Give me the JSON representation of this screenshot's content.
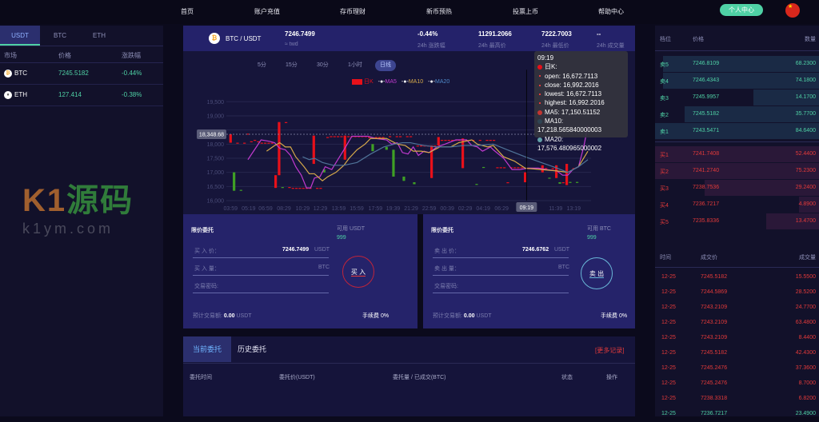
{
  "nav": {
    "items": [
      "首页",
      "账户充值",
      "存币理财",
      "新币预热",
      "投票上币",
      "帮助中心"
    ],
    "profile": "个人中心",
    "flag_icon": "china-flag-icon"
  },
  "left": {
    "tabs": [
      "USDT",
      "BTC",
      "ETH"
    ],
    "headers": [
      "市场",
      "价格",
      "涨跌幅"
    ],
    "rows": [
      {
        "coin": "BTC",
        "price": "7245.5182",
        "change": "-0.44%",
        "icon": "bitcoin-icon"
      },
      {
        "coin": "ETH",
        "price": "127.414",
        "change": "-0.38%",
        "icon": "ethereum-icon"
      }
    ]
  },
  "watermark": {
    "logo": "K1源码",
    "url": "k1ym.com"
  },
  "ticker": {
    "pair": "BTC / USDT",
    "price": "7246.7499",
    "price_sub": "≈ twd",
    "stats": [
      {
        "value": "-0.44%",
        "label": "24h 涨跌幅"
      },
      {
        "value": "11291.2066",
        "label": "24h 最高价"
      },
      {
        "value": "7222.7003",
        "label": "24h 最低价"
      },
      {
        "value": "--",
        "label": "24h 成交量"
      }
    ]
  },
  "periods": [
    "5分",
    "15分",
    "30分",
    "1小时",
    "日线"
  ],
  "active_period": "日线",
  "tooltip": {
    "time": "09:19",
    "title": "日K:",
    "lines": [
      "open: 16,672.7113",
      "close: 16,992.2016",
      "lowest: 16,672.7113",
      "highest: 16,992.2016"
    ],
    "ma": [
      "MA5: 17,150.51152",
      "MA10: 17,218.565840000003",
      "MA20: 17,576.480965000002"
    ]
  },
  "chart_data": {
    "type": "candlestick",
    "legend": [
      "日K",
      "MA5",
      "MA10",
      "MA20"
    ],
    "colors": {
      "up": "#e8101a",
      "down": "#3fa025",
      "ma5": "#c13ad0",
      "ma10": "#d6a94a",
      "ma20": "#4f7398"
    },
    "ylim": [
      16000,
      19500
    ],
    "yticks": [
      "19,500",
      "19,000",
      "18,500",
      "18,000",
      "17,500",
      "17,000",
      "16,500",
      "16,000"
    ],
    "ytick_values": [
      19500,
      19000,
      18500,
      18000,
      17500,
      17000,
      16500,
      16000
    ],
    "xtick_labels": [
      [
        "03:59",
        0
      ],
      [
        "05:19",
        5.2
      ],
      [
        "06:59",
        10.1
      ],
      [
        "08:29",
        15.4
      ],
      [
        "10:29",
        20.8
      ],
      [
        "12:29",
        25.9
      ],
      [
        "13:59",
        31.2
      ],
      [
        "15:59",
        36.4
      ],
      [
        "17:59",
        41.8
      ],
      [
        "19:39",
        46.9
      ],
      [
        "21:29",
        52.1
      ],
      [
        "22:59",
        57.3
      ],
      [
        "00:39",
        62.5
      ],
      [
        "02:29",
        67.7
      ],
      [
        "04:19",
        72.9
      ],
      [
        "06:29",
        78.2
      ],
      [
        "11:39",
        93.8
      ],
      [
        "13:19",
        99
      ]
    ],
    "pointer_x_label": "09:19",
    "pointer_index": 85.4,
    "pointer_y_label": "18,348.68",
    "pointer_y": 18348.68,
    "candles": [
      [
        18050,
        18350,
        18050,
        18350
      ],
      [
        17000,
        16350,
        16350,
        17000
      ],
      [
        18050,
        18050,
        18050,
        18050
      ],
      [
        16380,
        16370,
        16370,
        16380
      ],
      [
        18050,
        18050,
        18050,
        18050
      ],
      [
        18370,
        18370,
        18370,
        18370
      ],
      [
        18100,
        18100,
        18100,
        18100
      ],
      [
        18150,
        18150,
        18150,
        18150
      ],
      [
        18100,
        18100,
        18100,
        18100
      ],
      [
        18050,
        18050,
        18050,
        18050
      ],
      [
        18050,
        18050,
        18050,
        18050
      ],
      [
        18050,
        18050,
        18050,
        18050
      ],
      [
        18050,
        18050,
        18050,
        18050
      ],
      [
        16450,
        16900,
        16450,
        16900
      ],
      [
        16900,
        18780,
        16900,
        18780
      ],
      [
        16480,
        16470,
        16470,
        16480
      ],
      [
        18780,
        18780,
        18780,
        18780
      ],
      [
        16480,
        16480,
        16480,
        16480
      ],
      [
        16450,
        16450,
        16450,
        16450
      ],
      [
        16450,
        16450,
        16450,
        16450
      ],
      [
        16450,
        16450,
        16450,
        16450
      ],
      [
        16450,
        16450,
        16450,
        16450
      ],
      [
        16450,
        16450,
        16450,
        16450
      ],
      [
        16450,
        16450,
        16450,
        16450
      ],
      [
        17300,
        18300,
        17300,
        18300
      ],
      [
        16450,
        16450,
        16450,
        16450
      ],
      [
        16450,
        16450,
        16450,
        16450
      ],
      [
        17100,
        17000,
        17000,
        17100
      ],
      [
        18250,
        18250,
        18250,
        18250
      ],
      [
        18280,
        18280,
        18280,
        18280
      ],
      [
        18280,
        18280,
        18280,
        18280
      ],
      [
        18280,
        18280,
        18280,
        18280
      ],
      [
        18280,
        18280,
        18280,
        18280
      ],
      [
        17450,
        18300,
        17450,
        18300
      ],
      [
        18280,
        18280,
        18280,
        18280
      ],
      [
        18280,
        18280,
        18280,
        18280
      ],
      [
        18280,
        18280,
        18280,
        18280
      ],
      [
        18280,
        18280,
        18280,
        18280
      ],
      [
        18280,
        18280,
        18280,
        18280
      ],
      [
        18280,
        18280,
        18280,
        18280
      ],
      [
        18250,
        18250,
        18250,
        18250
      ],
      [
        18000,
        17750,
        17750,
        18000
      ],
      [
        18250,
        18250,
        18250,
        18250
      ],
      [
        18250,
        18250,
        18250,
        18250
      ],
      [
        18250,
        18250,
        18250,
        18250
      ],
      [
        17900,
        17800,
        17800,
        17900
      ],
      [
        18280,
        18280,
        18280,
        18280
      ],
      [
        17800,
        16850,
        16850,
        17800
      ],
      [
        18280,
        18280,
        18280,
        18280
      ],
      [
        18280,
        18280,
        18280,
        18280
      ],
      [
        16850,
        16700,
        16700,
        16850
      ],
      [
        18280,
        18280,
        18280,
        18280
      ],
      [
        18280,
        18280,
        18280,
        18280
      ],
      [
        16650,
        16580,
        16580,
        16650
      ],
      [
        17950,
        17950,
        17950,
        17950
      ],
      [
        17950,
        17950,
        17950,
        17950
      ],
      [
        17950,
        17950,
        17950,
        17950
      ],
      [
        17950,
        17950,
        17950,
        17950
      ],
      [
        16800,
        17950,
        16800,
        17950
      ],
      [
        17950,
        17950,
        17950,
        17950
      ],
      [
        17950,
        18250,
        17950,
        18250
      ],
      [
        18150,
        18150,
        18150,
        18150
      ],
      [
        18150,
        18150,
        18150,
        18150
      ],
      [
        18150,
        18150,
        18150,
        18150
      ],
      [
        18150,
        18150,
        18150,
        18150
      ],
      [
        18150,
        18150,
        18150,
        18150
      ],
      [
        18150,
        18150,
        18150,
        18150
      ],
      [
        17150,
        18200,
        17150,
        18200
      ],
      [
        18150,
        18150,
        18150,
        18150
      ],
      [
        18150,
        18150,
        18150,
        18150
      ],
      [
        18150,
        18150,
        18150,
        18150
      ],
      [
        16590,
        16580,
        16580,
        16590
      ],
      [
        18150,
        18150,
        18150,
        18150
      ],
      [
        17190,
        17180,
        17180,
        17190
      ],
      [
        18150,
        18150,
        18150,
        18150
      ],
      [
        18150,
        18150,
        18150,
        18150
      ],
      [
        18150,
        18150,
        18150,
        18150
      ],
      [
        17180,
        17180,
        17180,
        17180
      ],
      [
        17180,
        17180,
        17180,
        17180
      ],
      [
        17180,
        17180,
        17180,
        17180
      ],
      [
        16650,
        16650,
        16650,
        16650
      ],
      [
        17180,
        17180,
        17180,
        17180
      ],
      [
        17180,
        17180,
        17180,
        17180
      ],
      [
        17180,
        17180,
        17180,
        17180
      ],
      [
        17180,
        17180,
        17180,
        17180
      ],
      [
        16650,
        17000,
        16650,
        17000
      ],
      [
        17150,
        17150,
        17150,
        17150
      ],
      [
        17150,
        17150,
        17150,
        17150
      ],
      [
        17150,
        17150,
        17150,
        17150
      ],
      [
        17150,
        17150,
        17150,
        17150
      ],
      [
        17000,
        17250,
        17000,
        17250
      ],
      [
        17150,
        17150,
        17150,
        17150
      ],
      [
        16810,
        16800,
        16800,
        16810
      ],
      [
        17150,
        17150,
        17150,
        17150
      ],
      [
        16800,
        17250,
        16800,
        17250
      ],
      [
        16650,
        16600,
        16600,
        16650
      ],
      [
        16650,
        16650,
        16650,
        16650
      ],
      [
        16550,
        17300,
        16550,
        17300
      ],
      [
        16660,
        16650,
        16650,
        16660
      ],
      [
        17150,
        17150,
        17150,
        17150
      ],
      [
        16660,
        16650,
        16650,
        16660
      ]
    ],
    "ma5": [
      [
        5,
        17450
      ],
      [
        6.9,
        17800
      ],
      [
        8.8,
        18150
      ],
      [
        11.2,
        18100
      ],
      [
        12.7,
        18050
      ],
      [
        14.2,
        17850
      ],
      [
        15.8,
        17800
      ],
      [
        17.3,
        17600
      ],
      [
        18.8,
        17200
      ],
      [
        20.4,
        16900
      ],
      [
        21.9,
        16450
      ],
      [
        23.1,
        16450
      ],
      [
        24.2,
        16800
      ],
      [
        25.8,
        16850
      ],
      [
        27.3,
        17200
      ],
      [
        29.2,
        17100
      ],
      [
        31.2,
        17500
      ],
      [
        32.7,
        17800
      ],
      [
        35,
        18280
      ],
      [
        39.6,
        18280
      ],
      [
        41.9,
        18200
      ],
      [
        45,
        18150
      ],
      [
        46.5,
        18000
      ],
      [
        48.1,
        18050
      ],
      [
        49.6,
        17700
      ],
      [
        51.2,
        17650
      ],
      [
        52.7,
        17900
      ],
      [
        54.2,
        17600
      ],
      [
        55.8,
        17750
      ],
      [
        57.3,
        17700
      ],
      [
        59.6,
        17900
      ],
      [
        61.9,
        18000
      ],
      [
        65,
        18150
      ],
      [
        68.1,
        18150
      ],
      [
        69.6,
        17950
      ],
      [
        71.2,
        17900
      ],
      [
        72.7,
        17750
      ],
      [
        75,
        17900
      ],
      [
        75.8,
        17800
      ],
      [
        78.8,
        17500
      ],
      [
        81.2,
        17100
      ],
      [
        83.5,
        17100
      ],
      [
        85.8,
        17150
      ],
      [
        88.8,
        17150
      ],
      [
        91.2,
        17100
      ],
      [
        94.2,
        17050
      ],
      [
        95.8,
        16900
      ],
      [
        97.3,
        16900
      ],
      [
        98.8,
        17100
      ],
      [
        100.4,
        17200
      ],
      [
        101.9,
        17900
      ],
      [
        103.1,
        18650
      ]
    ],
    "ma10": [
      [
        10.4,
        17750
      ],
      [
        12.7,
        17950
      ],
      [
        14.2,
        18050
      ],
      [
        15.8,
        17900
      ],
      [
        17.3,
        17900
      ],
      [
        18.8,
        17550
      ],
      [
        21.2,
        17200
      ],
      [
        22.7,
        16950
      ],
      [
        24.2,
        16950
      ],
      [
        26.5,
        16700
      ],
      [
        28.1,
        16850
      ],
      [
        30.4,
        17000
      ],
      [
        32.7,
        17250
      ],
      [
        34.2,
        17500
      ],
      [
        36.5,
        17800
      ],
      [
        38.8,
        18000
      ],
      [
        40.4,
        18200
      ],
      [
        45,
        18200
      ],
      [
        48.1,
        18000
      ],
      [
        50.4,
        17950
      ],
      [
        52.7,
        17750
      ],
      [
        55,
        17750
      ],
      [
        57.3,
        17700
      ],
      [
        60.4,
        17900
      ],
      [
        63.5,
        17900
      ],
      [
        65.8,
        18050
      ],
      [
        69.6,
        18150
      ],
      [
        71.2,
        18000
      ],
      [
        74.2,
        17900
      ],
      [
        75.8,
        17950
      ],
      [
        78.8,
        17550
      ],
      [
        81.9,
        17400
      ],
      [
        85,
        17150
      ],
      [
        89.6,
        17100
      ],
      [
        94.2,
        17050
      ],
      [
        97.3,
        17000
      ],
      [
        100.4,
        17200
      ],
      [
        103.1,
        17750
      ]
    ],
    "ma20": [
      [
        20.8,
        17550
      ],
      [
        22.7,
        17450
      ],
      [
        24.2,
        17500
      ],
      [
        26.5,
        17350
      ],
      [
        29.6,
        17250
      ],
      [
        32.7,
        17250
      ],
      [
        36.5,
        17350
      ],
      [
        40.4,
        17650
      ],
      [
        44.2,
        17900
      ],
      [
        47.3,
        18000
      ],
      [
        49.6,
        18050
      ],
      [
        51.9,
        18050
      ],
      [
        55.8,
        17950
      ],
      [
        59.6,
        17900
      ],
      [
        63.5,
        17900
      ],
      [
        67.3,
        17950
      ],
      [
        71.2,
        17950
      ],
      [
        75.8,
        18000
      ],
      [
        78.8,
        17850
      ],
      [
        85,
        17550
      ],
      [
        89.6,
        17350
      ],
      [
        94.2,
        17150
      ],
      [
        97.3,
        17000
      ],
      [
        100.4,
        17200
      ],
      [
        103.1,
        17450
      ]
    ]
  },
  "buy": {
    "title": "限价委托",
    "avail_label": "可用 USDT",
    "avail": "999",
    "price_label": "买 入 价：",
    "price": "7246.7499",
    "price_unit": "USDT",
    "amount_label": "买 入 量：",
    "amount_unit": "BTC",
    "pwd_label": "交易密码:",
    "button": "买 入",
    "est_label": "预计交易额:",
    "est": "0.00",
    "est_unit": "USDT",
    "fee": "手续费 0%"
  },
  "sell": {
    "title": "限价委托",
    "avail_label": "可用 BTC",
    "avail": "999",
    "price_label": "卖 出 价：",
    "price": "7246.6762",
    "price_unit": "USDT",
    "amount_label": "卖 出 量：",
    "amount_unit": "BTC",
    "pwd_label": "交易密码:",
    "button": "卖 出",
    "est_label": "预计交易额:",
    "est": "0.00",
    "est_unit": "USDT",
    "fee": "手续费 0%"
  },
  "orders": {
    "tabs": [
      "当前委托",
      "历史委托"
    ],
    "more": "[更多记录]",
    "columns": [
      "委托时间",
      "委托价(USDT)",
      "委托量 / 已成交(BTC)",
      "状态",
      "操作"
    ]
  },
  "orderbook": {
    "headers": [
      "档位",
      "价格",
      "数量"
    ],
    "asks": [
      {
        "label": "卖5",
        "price": "7246.8109",
        "qty": "68.2300",
        "depth": 0.95
      },
      {
        "label": "卖4",
        "price": "7246.4343",
        "qty": "74.1800",
        "depth": 0.95
      },
      {
        "label": "卖3",
        "price": "7245.9957",
        "qty": "14.1700",
        "depth": 0.4
      },
      {
        "label": "卖2",
        "price": "7245.5182",
        "qty": "35.7700",
        "depth": 0.82
      },
      {
        "label": "卖1",
        "price": "7243.5471",
        "qty": "84.6400",
        "depth": 1
      }
    ],
    "bids": [
      {
        "label": "买1",
        "price": "7241.7408",
        "qty": "52.4400",
        "depth": 1
      },
      {
        "label": "买2",
        "price": "7241.2740",
        "qty": "75.2300",
        "depth": 1
      },
      {
        "label": "买3",
        "price": "7238.7536",
        "qty": "29.2400",
        "depth": 0.7
      },
      {
        "label": "买4",
        "price": "7236.7217",
        "qty": "4.8900",
        "depth": 0.12
      },
      {
        "label": "买5",
        "price": "7235.8336",
        "qty": "13.4700",
        "depth": 0.32
      }
    ]
  },
  "trades": {
    "headers": [
      "时间",
      "成交价",
      "成交量"
    ],
    "rows": [
      {
        "time": "12-25",
        "price": "7245.5182",
        "qty": "15.5500",
        "side": "sell"
      },
      {
        "time": "12-25",
        "price": "7244.5869",
        "qty": "28.5200",
        "side": "sell"
      },
      {
        "time": "12-25",
        "price": "7243.2109",
        "qty": "24.7700",
        "side": "sell"
      },
      {
        "time": "12-25",
        "price": "7243.2109",
        "qty": "63.4800",
        "side": "sell"
      },
      {
        "time": "12-25",
        "price": "7243.2109",
        "qty": "8.4400",
        "side": "sell"
      },
      {
        "time": "12-25",
        "price": "7245.5182",
        "qty": "42.4300",
        "side": "sell"
      },
      {
        "time": "12-25",
        "price": "7245.2476",
        "qty": "37.3600",
        "side": "sell"
      },
      {
        "time": "12-25",
        "price": "7245.2476",
        "qty": "8.7000",
        "side": "sell"
      },
      {
        "time": "12-25",
        "price": "7238.3318",
        "qty": "6.8200",
        "side": "sell"
      },
      {
        "time": "12-25",
        "price": "7236.7217",
        "qty": "23.4900",
        "side": "buy"
      }
    ]
  }
}
